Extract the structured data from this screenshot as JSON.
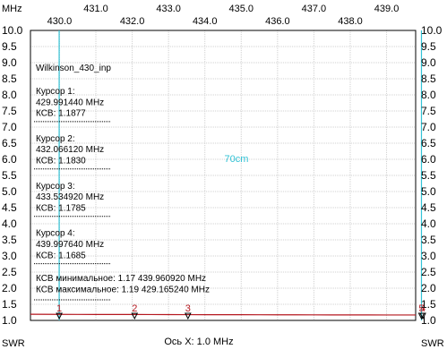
{
  "chart_data": {
    "type": "line",
    "x_unit_label": "MHz",
    "y_label_left": "SWR",
    "y_label_right": "SWR",
    "x_axis_caption": "Ось X: 1.0 MHz",
    "xlim": [
      429.2,
      439.8
    ],
    "ylim": [
      1.0,
      10.0
    ],
    "x_ticks_upper": [
      "431.0",
      "433.0",
      "435.0",
      "437.0",
      "439.0"
    ],
    "x_ticks_lower": [
      "430.0",
      "432.0",
      "434.0",
      "436.0",
      "438.0"
    ],
    "x_ticks_upper_values": [
      431,
      433,
      435,
      437,
      439
    ],
    "x_ticks_lower_values": [
      430,
      432,
      434,
      436,
      438
    ],
    "y_ticks": [
      "1.0",
      "1.5",
      "2.0",
      "2.5",
      "3.0",
      "3.5",
      "4.0",
      "4.5",
      "5.0",
      "5.5",
      "6.0",
      "6.5",
      "7.0",
      "7.5",
      "8.0",
      "8.5",
      "9.0",
      "9.5",
      "10.0"
    ],
    "y_tick_values": [
      1.0,
      1.5,
      2.0,
      2.5,
      3.0,
      3.5,
      4.0,
      4.5,
      5.0,
      5.5,
      6.0,
      6.5,
      7.0,
      7.5,
      8.0,
      8.5,
      9.0,
      9.5,
      10.0
    ],
    "series": [
      {
        "color": "#b5171f",
        "x": [
          429.2,
          429.99,
          430.5,
          431.0,
          431.5,
          432.07,
          432.5,
          433.0,
          433.53,
          434.0,
          434.5,
          435.0,
          435.5,
          436.0,
          436.5,
          437.0,
          437.5,
          438.0,
          438.5,
          439.0,
          439.5,
          439.8
        ],
        "y": [
          1.19,
          1.188,
          1.186,
          1.185,
          1.184,
          1.183,
          1.182,
          1.18,
          1.179,
          1.178,
          1.177,
          1.176,
          1.175,
          1.174,
          1.173,
          1.172,
          1.171,
          1.17,
          1.17,
          1.169,
          1.169,
          1.168
        ]
      }
    ],
    "band_lines_x": [
      429.99,
      439.96
    ],
    "band_label": "70cm",
    "cursors": [
      {
        "label": "1",
        "x": 429.99144
      },
      {
        "label": "2",
        "x": 432.06612
      },
      {
        "label": "3",
        "x": 433.53492
      },
      {
        "label": "4",
        "x": 439.99764
      },
      {
        "label": "5",
        "x": 439.96
      }
    ],
    "info_title": "Wilkinson_430_inp",
    "info_lines": [
      "Курсор 1:",
      "429.991440 MHz",
      "КСВ: 1.1877",
      "Курсор 2:",
      "432.066120 MHz",
      "КСВ: 1.1830",
      "Курсор 3:",
      "433.534920 MHz",
      "КСВ: 1.1785",
      "Курсор 4:",
      "439.997640 MHz",
      "КСВ: 1.1685"
    ],
    "summary_lines": [
      "КСВ минимальное: 1.17  439.960920 MHz",
      "КСВ максимальное: 1.19  429.165240 MHz"
    ],
    "grid": true
  }
}
